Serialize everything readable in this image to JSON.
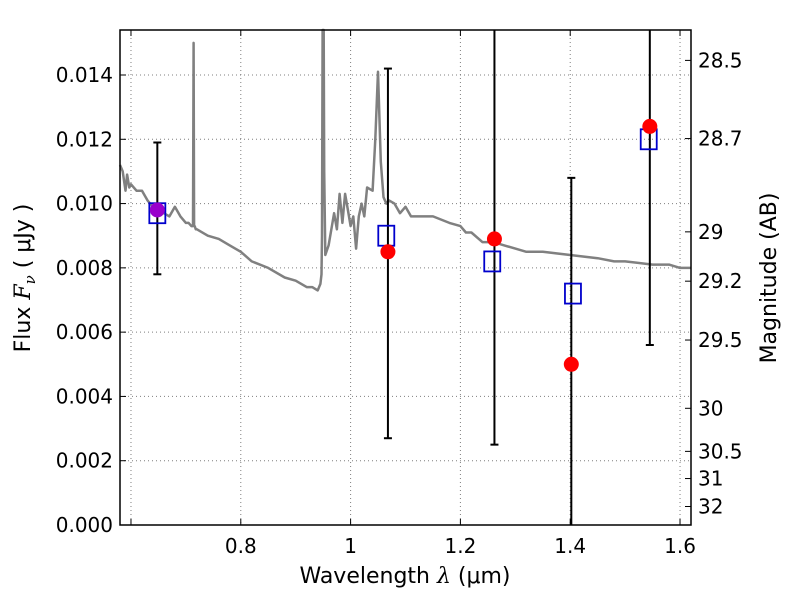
{
  "chart_data": {
    "type": "scatter",
    "title": "",
    "xlabel": {
      "prefix": "Wavelength  ",
      "math": "λ",
      "suffix": " (μm)"
    },
    "ylabel": {
      "prefix": "Flux  ",
      "math": "F",
      "sub": "ν",
      "suffix": "  ( μJy )"
    },
    "y2label": "Magnitude (AB)",
    "xlim": [
      0.58,
      1.62
    ],
    "ylim": [
      0.0,
      0.0154
    ],
    "grid": true,
    "legend": "none",
    "x_ticks": [
      {
        "value": 0.6,
        "label": ""
      },
      {
        "value": 0.8,
        "label": "0.8"
      },
      {
        "value": 1.0,
        "label": "1"
      },
      {
        "value": 1.2,
        "label": "1.2"
      },
      {
        "value": 1.4,
        "label": "1.4"
      },
      {
        "value": 1.6,
        "label": "1.6"
      }
    ],
    "y_ticks": [
      {
        "value": 0.0,
        "label": "0.000"
      },
      {
        "value": 0.002,
        "label": "0.002"
      },
      {
        "value": 0.004,
        "label": "0.004"
      },
      {
        "value": 0.006,
        "label": "0.006"
      },
      {
        "value": 0.008,
        "label": "0.008"
      },
      {
        "value": 0.01,
        "label": "0.010"
      },
      {
        "value": 0.012,
        "label": "0.012"
      },
      {
        "value": 0.014,
        "label": "0.014"
      }
    ],
    "y2_ticks": [
      {
        "mag": 28.5,
        "label": "28.5"
      },
      {
        "mag": 28.7,
        "label": "28.7"
      },
      {
        "mag": 29.0,
        "label": "29"
      },
      {
        "mag": 29.2,
        "label": "29.2"
      },
      {
        "mag": 29.5,
        "label": "29.5"
      },
      {
        "mag": 30.0,
        "label": "30"
      },
      {
        "mag": 30.5,
        "label": "30.5"
      },
      {
        "mag": 31.0,
        "label": "31"
      },
      {
        "mag": 32.0,
        "label": "32"
      }
    ],
    "colors": {
      "spectrum": "#808080",
      "model": "#0000cc",
      "observed": "#ff0000",
      "first_observed": "#9900cc",
      "errorbar": "#000000",
      "grid": "#7f7f7f"
    },
    "spectrum": {
      "x": [
        0.58,
        0.585,
        0.59,
        0.593,
        0.597,
        0.6,
        0.61,
        0.62,
        0.63,
        0.64,
        0.65,
        0.66,
        0.67,
        0.68,
        0.69,
        0.7,
        0.705,
        0.71,
        0.713,
        0.714,
        0.715,
        0.716,
        0.718,
        0.72,
        0.74,
        0.76,
        0.78,
        0.8,
        0.82,
        0.85,
        0.88,
        0.9,
        0.92,
        0.93,
        0.94,
        0.945,
        0.947,
        0.948,
        0.949,
        0.95,
        0.951,
        0.952,
        0.954,
        0.96,
        0.97,
        0.975,
        0.98,
        0.985,
        0.99,
        0.995,
        1.0,
        1.005,
        1.01,
        1.015,
        1.02,
        1.025,
        1.03,
        1.04,
        1.045,
        1.05,
        1.055,
        1.06,
        1.065,
        1.07,
        1.08,
        1.09,
        1.1,
        1.11,
        1.12,
        1.15,
        1.18,
        1.2,
        1.21,
        1.22,
        1.24,
        1.26,
        1.28,
        1.3,
        1.32,
        1.35,
        1.4,
        1.45,
        1.48,
        1.5,
        1.55,
        1.58,
        1.6,
        1.62
      ],
      "y": [
        0.0112,
        0.011,
        0.0104,
        0.0109,
        0.0105,
        0.0106,
        0.0104,
        0.0104,
        0.0101,
        0.0099,
        0.0097,
        0.0097,
        0.0096,
        0.0099,
        0.0096,
        0.0094,
        0.0094,
        0.0093,
        0.0093,
        0.015,
        0.0093,
        0.0093,
        0.0092,
        0.0092,
        0.009,
        0.0089,
        0.0087,
        0.0085,
        0.0082,
        0.008,
        0.0077,
        0.0076,
        0.0074,
        0.0074,
        0.0073,
        0.0075,
        0.0078,
        0.009,
        0.0154,
        0.0154,
        0.0154,
        0.011,
        0.0084,
        0.0087,
        0.0097,
        0.0092,
        0.0103,
        0.0094,
        0.0103,
        0.0098,
        0.0093,
        0.0096,
        0.0086,
        0.0096,
        0.01,
        0.0096,
        0.0105,
        0.0104,
        0.012,
        0.0141,
        0.0113,
        0.0102,
        0.01,
        0.0101,
        0.01,
        0.0097,
        0.0099,
        0.0096,
        0.0096,
        0.0096,
        0.0094,
        0.0093,
        0.0091,
        0.0091,
        0.0088,
        0.0088,
        0.0087,
        0.0086,
        0.0085,
        0.0085,
        0.0084,
        0.0083,
        0.0082,
        0.0082,
        0.0081,
        0.0081,
        0.008,
        0.008
      ]
    },
    "model_points": {
      "x": [
        0.648,
        1.065,
        1.258,
        1.405,
        1.543
      ],
      "y": [
        0.0097,
        0.009,
        0.0082,
        0.0072,
        0.012
      ]
    },
    "observed_points": {
      "x": [
        0.648,
        1.068,
        1.262,
        1.402,
        1.545
      ],
      "y": [
        0.0098,
        0.0085,
        0.0089,
        0.005,
        0.0124
      ],
      "yerr_low": [
        0.0078,
        0.0027,
        0.0025,
        0.0,
        0.0056
      ],
      "yerr_high": [
        0.0119,
        0.0142,
        0.0154,
        0.0108,
        0.0154
      ]
    }
  }
}
